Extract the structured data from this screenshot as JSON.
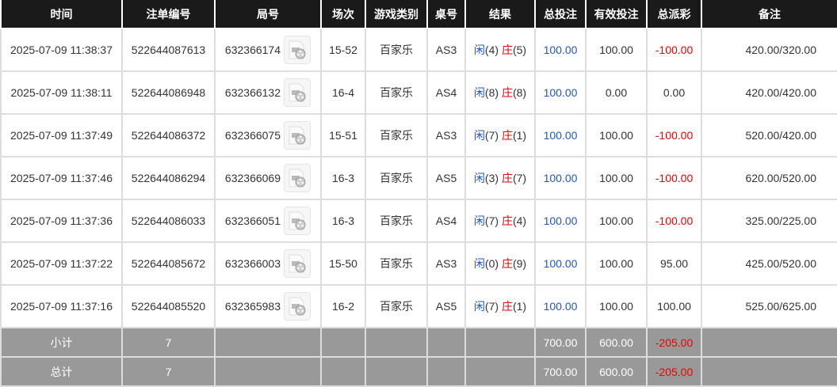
{
  "colors": {
    "header_bg": "#1a1a1a",
    "player": "#2255cc",
    "banker": "#e00000",
    "negative": "#e00000",
    "summary_bg": "#999999"
  },
  "headers": [
    "时间",
    "注单编号",
    "局号",
    "场次",
    "游戏类别",
    "桌号",
    "结果",
    "总投注",
    "有效投注",
    "总派彩",
    "备注"
  ],
  "rows": [
    {
      "time": "2025-07-09 11:38:37",
      "bet_id": "522644087613",
      "round_id": "632366174",
      "shoe": "15-52",
      "game": "百家乐",
      "table": "AS3",
      "player": "闲",
      "player_pts": "(4)",
      "banker": "庄",
      "banker_pts": "(5)",
      "total_bet": "100.00",
      "valid_bet": "100.00",
      "payout": "-100.00",
      "note": "420.00/320.00"
    },
    {
      "time": "2025-07-09 11:38:11",
      "bet_id": "522644086948",
      "round_id": "632366132",
      "shoe": "16-4",
      "game": "百家乐",
      "table": "AS4",
      "player": "闲",
      "player_pts": "(8)",
      "banker": "庄",
      "banker_pts": "(8)",
      "total_bet": "100.00",
      "valid_bet": "0.00",
      "payout": "0.00",
      "note": "420.00/420.00"
    },
    {
      "time": "2025-07-09 11:37:49",
      "bet_id": "522644086372",
      "round_id": "632366075",
      "shoe": "15-51",
      "game": "百家乐",
      "table": "AS3",
      "player": "闲",
      "player_pts": "(7)",
      "banker": "庄",
      "banker_pts": "(1)",
      "total_bet": "100.00",
      "valid_bet": "100.00",
      "payout": "-100.00",
      "note": "520.00/420.00"
    },
    {
      "time": "2025-07-09 11:37:46",
      "bet_id": "522644086294",
      "round_id": "632366069",
      "shoe": "16-3",
      "game": "百家乐",
      "table": "AS5",
      "player": "闲",
      "player_pts": "(3)",
      "banker": "庄",
      "banker_pts": "(7)",
      "total_bet": "100.00",
      "valid_bet": "100.00",
      "payout": "-100.00",
      "note": "620.00/520.00"
    },
    {
      "time": "2025-07-09 11:37:36",
      "bet_id": "522644086033",
      "round_id": "632366051",
      "shoe": "16-3",
      "game": "百家乐",
      "table": "AS4",
      "player": "闲",
      "player_pts": "(7)",
      "banker": "庄",
      "banker_pts": "(4)",
      "total_bet": "100.00",
      "valid_bet": "100.00",
      "payout": "-100.00",
      "note": "325.00/225.00"
    },
    {
      "time": "2025-07-09 11:37:22",
      "bet_id": "522644085672",
      "round_id": "632366003",
      "shoe": "15-50",
      "game": "百家乐",
      "table": "AS3",
      "player": "闲",
      "player_pts": "(0)",
      "banker": "庄",
      "banker_pts": "(9)",
      "total_bet": "100.00",
      "valid_bet": "100.00",
      "payout": "95.00",
      "note": "425.00/520.00"
    },
    {
      "time": "2025-07-09 11:37:16",
      "bet_id": "522644085520",
      "round_id": "632365983",
      "shoe": "16-2",
      "game": "百家乐",
      "table": "AS5",
      "player": "闲",
      "player_pts": "(7)",
      "banker": "庄",
      "banker_pts": "(1)",
      "total_bet": "100.00",
      "valid_bet": "100.00",
      "payout": "100.00",
      "note": "525.00/625.00"
    }
  ],
  "summaries": [
    {
      "label": "小计",
      "count": "7",
      "total_bet": "700.00",
      "valid_bet": "600.00",
      "payout": "-205.00"
    },
    {
      "label": "总计",
      "count": "7",
      "total_bet": "700.00",
      "valid_bet": "600.00",
      "payout": "-205.00"
    }
  ]
}
